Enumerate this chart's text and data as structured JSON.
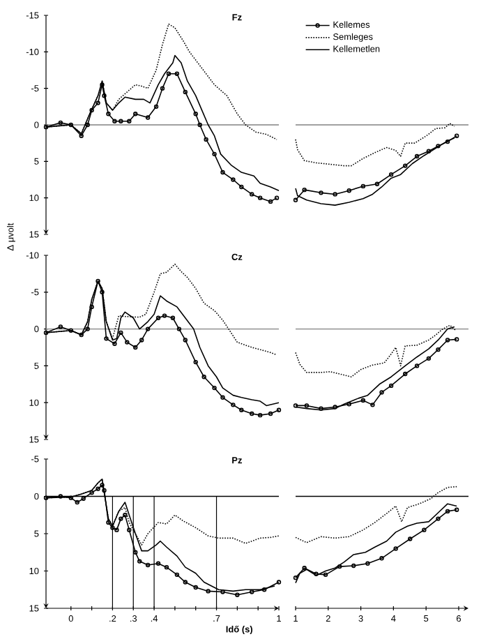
{
  "chart_data": [
    {
      "type": "line",
      "title": "Fz",
      "xlim": [
        -0.12,
        1
      ],
      "ylim": [
        15,
        -15
      ],
      "yticks": [
        -15,
        -10,
        -5,
        0,
        5,
        10,
        15
      ],
      "tick_labels": "y",
      "ref_lines": [
        {
          "axis": "y",
          "value": 0,
          "color": "#808080"
        }
      ],
      "series": [
        {
          "color": "#000000",
          "marker": "circle",
          "line_style": "solid",
          "x": [
            -0.12,
            -0.05,
            0,
            0.05,
            0.08,
            0.1,
            0.13,
            0.15,
            0.16,
            0.18,
            0.21,
            0.24,
            0.28,
            0.31,
            0.37,
            0.41,
            0.44,
            0.47,
            0.51,
            0.55,
            0.6,
            0.62,
            0.65,
            0.69,
            0.73,
            0.78,
            0.82,
            0.87,
            0.91,
            0.96,
            0.99
          ],
          "values": [
            0.3,
            -0.3,
            0,
            1.5,
            0,
            -2,
            -3,
            -5.5,
            -4,
            -1.5,
            -0.5,
            -0.5,
            -0.5,
            -1.5,
            -1,
            -2.5,
            -5,
            -7,
            -7,
            -4.5,
            -1.5,
            0,
            2,
            4,
            6.5,
            7.5,
            8.5,
            9.5,
            10,
            10.5,
            10
          ]
        },
        {
          "color": "#000000",
          "marker": "none",
          "line_style": "dotted",
          "x": [
            -0.12,
            0,
            0.05,
            0.09,
            0.13,
            0.15,
            0.17,
            0.2,
            0.23,
            0.27,
            0.31,
            0.34,
            0.37,
            0.41,
            0.44,
            0.47,
            0.5,
            0.54,
            0.57,
            0.61,
            0.65,
            0.69,
            0.75,
            0.8,
            0.84,
            0.89,
            0.94,
            0.99
          ],
          "values": [
            0.3,
            0,
            1.2,
            -1.5,
            -4,
            -6,
            -3,
            -2,
            -3.5,
            -4.5,
            -5.5,
            -5.3,
            -5,
            -7.5,
            -11,
            -13.8,
            -13.3,
            -11.5,
            -10,
            -8.5,
            -7,
            -5.5,
            -4,
            -1.5,
            0,
            1,
            1.3,
            2
          ]
        },
        {
          "color": "#000000",
          "marker": "none",
          "line_style": "solid",
          "x": [
            -0.12,
            0,
            0.05,
            0.09,
            0.13,
            0.15,
            0.17,
            0.2,
            0.23,
            0.26,
            0.31,
            0.35,
            0.38,
            0.42,
            0.45,
            0.49,
            0.5,
            0.53,
            0.56,
            0.6,
            0.63,
            0.66,
            0.69,
            0.72,
            0.77,
            0.82,
            0.88,
            0.91,
            0.96,
            1.0
          ],
          "values": [
            0.3,
            0,
            1.2,
            -1.5,
            -4,
            -6,
            -3,
            -2,
            -3,
            -3.8,
            -3.5,
            -3.5,
            -3,
            -5.5,
            -7,
            -8.5,
            -9.5,
            -8.5,
            -6,
            -4,
            -2,
            0,
            1.5,
            4,
            5.5,
            6.5,
            7,
            8,
            8.5,
            9
          ]
        }
      ]
    },
    {
      "type": "line",
      "xlim": [
        1,
        6.3
      ],
      "ylim": [
        15,
        -15
      ],
      "tick_labels": false,
      "legend": "top left",
      "ref_lines": [
        {
          "axis": "y",
          "value": 0,
          "color": "#808080"
        }
      ],
      "series": [
        {
          "name": "Kellemes",
          "color": "#000000",
          "marker": "circle",
          "line_style": "solid",
          "x": [
            1.0,
            1.27,
            1.78,
            2.21,
            2.64,
            3.07,
            3.5,
            3.93,
            4.36,
            4.72,
            5.08,
            5.37,
            5.66,
            5.94
          ],
          "values": [
            10.3,
            8.9,
            9.3,
            9.5,
            9,
            8.4,
            8.1,
            6.8,
            5.6,
            4.3,
            3.6,
            2.9,
            2.3,
            1.5
          ]
        },
        {
          "name": "Semleges",
          "color": "#000000",
          "marker": "none",
          "line_style": "dotted",
          "x": [
            1.0,
            1.06,
            1.27,
            1.63,
            2.06,
            2.49,
            2.71,
            3.07,
            3.43,
            3.79,
            4.07,
            4.22,
            4.36,
            4.65,
            5.01,
            5.3,
            5.58,
            5.73,
            5.87
          ],
          "values": [
            2,
            3.4,
            4.9,
            5.2,
            5.4,
            5.6,
            5.6,
            4.6,
            3.8,
            3.1,
            3.5,
            4.3,
            2.5,
            2.5,
            1.5,
            0.5,
            0.4,
            -0.2,
            0.2
          ]
        },
        {
          "name": "Kellemetlen",
          "color": "#000000",
          "marker": "none",
          "line_style": "solid",
          "x": [
            1.0,
            1.06,
            1.34,
            1.78,
            2.21,
            2.64,
            3.07,
            3.36,
            3.64,
            3.93,
            4.22,
            4.58,
            4.94,
            5.37,
            5.66,
            5.87
          ],
          "values": [
            8.7,
            9.7,
            10.3,
            10.8,
            11,
            10.6,
            10.1,
            9.5,
            8.5,
            7.3,
            6.8,
            5.3,
            4.2,
            3,
            2.2,
            1.8
          ]
        }
      ]
    },
    {
      "type": "line",
      "title": "Cz",
      "ylabel": "Δ μvolt",
      "xlim": [
        -0.12,
        1
      ],
      "ylim": [
        15,
        -10
      ],
      "yticks": [
        -10,
        -5,
        0,
        5,
        10,
        15
      ],
      "tick_labels": "y",
      "ref_lines": [
        {
          "axis": "y",
          "value": 0,
          "color": "#808080"
        }
      ],
      "series": [
        {
          "color": "#000000",
          "marker": "circle",
          "line_style": "solid",
          "x": [
            -0.12,
            -0.05,
            0,
            0.05,
            0.08,
            0.1,
            0.13,
            0.15,
            0.17,
            0.21,
            0.24,
            0.27,
            0.31,
            0.34,
            0.37,
            0.42,
            0.45,
            0.49,
            0.52,
            0.55,
            0.6,
            0.64,
            0.69,
            0.73,
            0.78,
            0.82,
            0.87,
            0.91,
            0.96,
            1.0
          ],
          "values": [
            0.5,
            -0.3,
            0.2,
            0.8,
            0,
            -3,
            -6.5,
            -5,
            1.3,
            2,
            0.5,
            1.8,
            2.5,
            1.5,
            0,
            -1.5,
            -1.8,
            -1.5,
            0,
            1.5,
            4.5,
            6.5,
            8,
            9.3,
            10.3,
            11,
            11.5,
            11.7,
            11.5,
            11
          ]
        },
        {
          "color": "#000000",
          "marker": "none",
          "line_style": "dotted",
          "x": [
            -0.12,
            0,
            0.05,
            0.08,
            0.1,
            0.13,
            0.15,
            0.17,
            0.2,
            0.23,
            0.26,
            0.33,
            0.36,
            0.4,
            0.43,
            0.46,
            0.5,
            0.53,
            0.56,
            0.6,
            0.64,
            0.69,
            0.73,
            0.77,
            0.8,
            0.87,
            0.91,
            0.96,
            0.99
          ],
          "values": [
            0.5,
            0.2,
            0.8,
            -1,
            -4,
            -6.5,
            -5.5,
            -1,
            1.3,
            -1.8,
            -1.7,
            -1.6,
            -2,
            -5,
            -7.5,
            -7.7,
            -8.8,
            -7.8,
            -7,
            -5.5,
            -3.5,
            -2.5,
            -1.2,
            0.5,
            1.8,
            2.5,
            2.8,
            3.2,
            3.5
          ]
        },
        {
          "color": "#000000",
          "marker": "none",
          "line_style": "solid",
          "x": [
            -0.12,
            0,
            0.05,
            0.08,
            0.1,
            0.13,
            0.15,
            0.17,
            0.2,
            0.22,
            0.24,
            0.26,
            0.3,
            0.33,
            0.37,
            0.4,
            0.43,
            0.46,
            0.51,
            0.55,
            0.59,
            0.62,
            0.66,
            0.7,
            0.73,
            0.78,
            0.82,
            0.87,
            0.91,
            0.94,
            1.0
          ],
          "values": [
            0.5,
            0.2,
            0.8,
            -1,
            -4,
            -6.5,
            -5.5,
            -1,
            1.5,
            1.3,
            -1.5,
            -2.3,
            -1.5,
            0,
            -1,
            -2,
            -4.5,
            -3.8,
            -3,
            -1.5,
            0,
            2.5,
            5,
            6.5,
            8,
            9,
            9.3,
            9.6,
            9.8,
            10.4,
            10
          ]
        }
      ]
    },
    {
      "type": "line",
      "xlim": [
        1,
        6.3
      ],
      "ylim": [
        15,
        -10
      ],
      "tick_labels": false,
      "ref_lines": [
        {
          "axis": "y",
          "value": 0,
          "color": "#808080"
        }
      ],
      "series": [
        {
          "color": "#000000",
          "marker": "circle",
          "line_style": "solid",
          "x": [
            1.0,
            1.34,
            1.78,
            2.21,
            2.64,
            3.07,
            3.36,
            3.64,
            3.93,
            4.36,
            4.72,
            5.08,
            5.37,
            5.66,
            5.94
          ],
          "values": [
            10.4,
            10.4,
            10.8,
            10.6,
            10.2,
            9.7,
            10.3,
            8.6,
            7.7,
            6.1,
            5,
            4,
            2.8,
            1.5,
            1.4
          ]
        },
        {
          "color": "#000000",
          "marker": "none",
          "line_style": "dotted",
          "x": [
            1.0,
            1.13,
            1.34,
            1.78,
            2.06,
            2.35,
            2.71,
            3.0,
            3.36,
            3.72,
            3.93,
            4.07,
            4.22,
            4.36,
            4.72,
            5.08,
            5.3,
            5.51,
            5.73,
            5.91
          ],
          "values": [
            3.2,
            4.8,
            5.9,
            5.9,
            5.8,
            6.1,
            6.5,
            5.5,
            4.9,
            4.6,
            3.4,
            2.5,
            5,
            2.3,
            2.2,
            1.5,
            0.8,
            0,
            -0.5,
            0.2
          ]
        },
        {
          "color": "#000000",
          "marker": "none",
          "line_style": "solid",
          "x": [
            1.0,
            1.34,
            1.78,
            2.21,
            2.49,
            2.93,
            3.21,
            3.57,
            3.93,
            4.36,
            4.72,
            5.08,
            5.37,
            5.66,
            5.87
          ],
          "values": [
            10.6,
            10.8,
            11,
            10.8,
            10.2,
            9.4,
            9,
            7.5,
            6.5,
            5,
            3.8,
            2.7,
            1.5,
            0,
            -0.3
          ]
        }
      ]
    },
    {
      "type": "line",
      "title": "Pz",
      "xlabel": "Idő (s)",
      "xlim": [
        -0.12,
        1
      ],
      "ylim": [
        15,
        -5
      ],
      "yticks": [
        -5,
        0,
        5,
        10,
        15
      ],
      "xticks": [
        0,
        {
          "value": 0.1,
          "label": null
        },
        {
          "value": 0.2,
          "label": ".2"
        },
        {
          "value": 0.3,
          "label": ".3"
        },
        {
          "value": 0.4,
          "label": ".4"
        },
        {
          "value": 0.5,
          "label": null
        },
        {
          "value": 0.6,
          "label": null
        },
        {
          "value": 0.7,
          "label": ".7"
        },
        {
          "value": 0.8,
          "label": null
        },
        {
          "value": 0.9,
          "label": null
        },
        1
      ],
      "ref_lines": [
        {
          "axis": "y",
          "value": 0,
          "color": "#000000"
        },
        {
          "axis": "x",
          "value": 0.2,
          "color": "#000000"
        },
        {
          "axis": "x",
          "value": 0.3,
          "color": "#000000"
        },
        {
          "axis": "x",
          "value": 0.4,
          "color": "#000000"
        },
        {
          "axis": "x",
          "value": 0.7,
          "color": "#000000"
        }
      ],
      "series": [
        {
          "color": "#000000",
          "marker": "circle",
          "line_style": "solid",
          "x": [
            -0.12,
            -0.05,
            0,
            0.03,
            0.06,
            0.1,
            0.13,
            0.15,
            0.16,
            0.18,
            0.2,
            0.22,
            0.24,
            0.26,
            0.28,
            0.31,
            0.33,
            0.37,
            0.42,
            0.46,
            0.51,
            0.55,
            0.6,
            0.66,
            0.73,
            0.8,
            0.87,
            0.93,
            1.0
          ],
          "values": [
            0.2,
            0,
            0.2,
            0.8,
            0.3,
            -0.5,
            -1,
            -1.5,
            -0.8,
            3.5,
            4.2,
            4.5,
            3,
            2.5,
            4.5,
            7.5,
            8.7,
            9.2,
            9,
            9.5,
            10.5,
            11.5,
            12.2,
            12.7,
            12.8,
            13.2,
            12.8,
            12.5,
            11.5
          ]
        },
        {
          "color": "#000000",
          "marker": "none",
          "line_style": "dotted",
          "x": [
            -0.12,
            0,
            0.05,
            0.1,
            0.13,
            0.15,
            0.16,
            0.18,
            0.2,
            0.23,
            0.26,
            0.28,
            0.32,
            0.34,
            0.37,
            0.42,
            0.46,
            0.5,
            0.54,
            0.6,
            0.66,
            0.71,
            0.78,
            0.84,
            0.91,
            0.96,
            1.0
          ],
          "values": [
            0.2,
            0.1,
            -0.3,
            -0.8,
            -1.8,
            -2.3,
            -0.5,
            3,
            4,
            2,
            1.5,
            3.5,
            5.5,
            6.5,
            5,
            3.5,
            3.7,
            2.5,
            3.3,
            4.2,
            5.3,
            5.6,
            5.6,
            6.3,
            5.6,
            5.5,
            5.3
          ]
        },
        {
          "color": "#000000",
          "marker": "none",
          "line_style": "solid",
          "x": [
            -0.12,
            0,
            0.05,
            0.1,
            0.13,
            0.15,
            0.16,
            0.18,
            0.2,
            0.23,
            0.26,
            0.28,
            0.31,
            0.34,
            0.37,
            0.41,
            0.43,
            0.46,
            0.51,
            0.55,
            0.6,
            0.64,
            0.71,
            0.78,
            0.84,
            0.91,
            0.98
          ],
          "values": [
            0.2,
            0.1,
            -0.3,
            -0.8,
            -1.8,
            -2.3,
            -0.5,
            3,
            4,
            2,
            0.8,
            2.5,
            5,
            7.3,
            7.3,
            6.5,
            6,
            6.8,
            8,
            9.5,
            10.3,
            11.5,
            12.5,
            12.7,
            12.5,
            12.5,
            12
          ]
        }
      ]
    },
    {
      "type": "line",
      "xlim": [
        1,
        6.3
      ],
      "ylim": [
        15,
        -5
      ],
      "xticks": [
        1,
        2,
        3,
        4,
        5,
        6
      ],
      "tick_labels": "x",
      "ref_lines": [
        {
          "axis": "y",
          "value": 0,
          "color": "#000000"
        }
      ],
      "series": [
        {
          "color": "#000000",
          "marker": "circle",
          "line_style": "solid",
          "x": [
            1.0,
            1.27,
            1.63,
            1.92,
            2.35,
            2.78,
            3.21,
            3.64,
            4.07,
            4.51,
            4.94,
            5.37,
            5.66,
            5.94
          ],
          "values": [
            10.9,
            9.6,
            10.4,
            10.5,
            9.4,
            9.3,
            9,
            8.3,
            7,
            5.7,
            4.5,
            3,
            2,
            1.8
          ]
        },
        {
          "color": "#000000",
          "marker": "none",
          "line_style": "dotted",
          "x": [
            1.0,
            1.34,
            1.78,
            2.21,
            2.64,
            3.07,
            3.43,
            3.79,
            4.07,
            4.25,
            4.43,
            4.79,
            5.15,
            5.37,
            5.66,
            5.94
          ],
          "values": [
            5.5,
            6.2,
            5.4,
            5.6,
            5.4,
            4.5,
            3.5,
            2.3,
            1.3,
            3.4,
            1.5,
            1,
            0.3,
            -0.5,
            -1.2,
            -1.3
          ]
        },
        {
          "color": "#000000",
          "marker": "none",
          "line_style": "solid",
          "x": [
            1.0,
            1.13,
            1.34,
            1.63,
            1.92,
            2.21,
            2.49,
            2.78,
            3.14,
            3.43,
            3.79,
            4.07,
            4.43,
            4.72,
            5.08,
            5.37,
            5.66,
            5.94
          ],
          "values": [
            11.6,
            10.3,
            9.8,
            10.6,
            10,
            9.6,
            8.8,
            7.8,
            7.5,
            6.8,
            6,
            4.8,
            4,
            3.6,
            3.4,
            2.2,
            1,
            1.3
          ]
        }
      ]
    }
  ]
}
